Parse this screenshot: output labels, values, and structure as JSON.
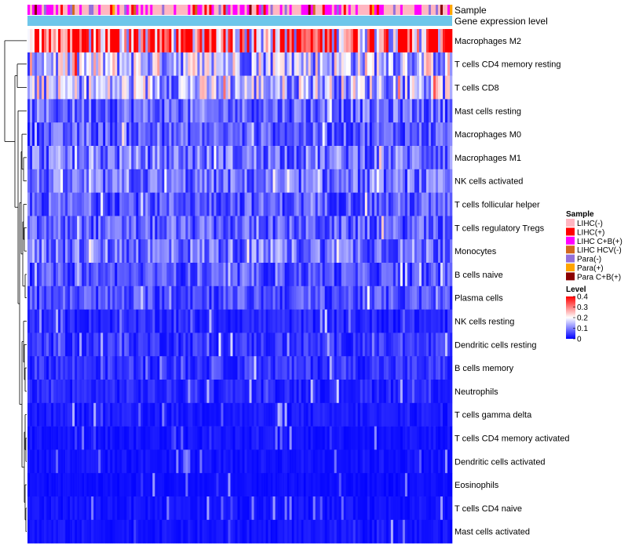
{
  "chart_data": {
    "type": "heatmap",
    "annotation_rows": [
      "Sample",
      "Gene expression level"
    ],
    "rows": [
      {
        "name": "Macrophages M2",
        "mean": 0.32
      },
      {
        "name": "T cells CD4 memory resting",
        "mean": 0.16
      },
      {
        "name": "T cells CD8",
        "mean": 0.15
      },
      {
        "name": "Mast cells resting",
        "mean": 0.08
      },
      {
        "name": "Macrophages M0",
        "mean": 0.07
      },
      {
        "name": "Macrophages M1",
        "mean": 0.09
      },
      {
        "name": "NK cells activated",
        "mean": 0.08
      },
      {
        "name": "T cells follicular helper",
        "mean": 0.07
      },
      {
        "name": "T cells regulatory  Tregs",
        "mean": 0.07
      },
      {
        "name": "Monocytes",
        "mean": 0.09
      },
      {
        "name": "B cells naive",
        "mean": 0.06
      },
      {
        "name": "Plasma cells",
        "mean": 0.06
      },
      {
        "name": "NK cells resting",
        "mean": 0.03
      },
      {
        "name": "Dendritic cells resting",
        "mean": 0.04
      },
      {
        "name": "B cells memory",
        "mean": 0.04
      },
      {
        "name": "Neutrophils",
        "mean": 0.03
      },
      {
        "name": "T cells gamma delta",
        "mean": 0.02
      },
      {
        "name": "T cells CD4 memory activated",
        "mean": 0.015
      },
      {
        "name": "Dendritic cells activated",
        "mean": 0.015
      },
      {
        "name": "Eosinophils",
        "mean": 0.01
      },
      {
        "name": "T cells CD4 naive",
        "mean": 0.015
      },
      {
        "name": "Mast cells activated",
        "mean": 0.015
      }
    ],
    "sample_legend": {
      "title": "Sample",
      "items": [
        {
          "label": "LIHC(-)",
          "color": "#ffb6c1"
        },
        {
          "label": "LIHC(+)",
          "color": "#ff0000"
        },
        {
          "label": "LIHC C+B(+)",
          "color": "#ff00ff"
        },
        {
          "label": "LIHC HCV(-)",
          "color": "#d2691e"
        },
        {
          "label": "Para(-)",
          "color": "#9370db"
        },
        {
          "label": "Para(+)",
          "color": "#ffa500"
        },
        {
          "label": "Para C+B(+)",
          "color": "#8b0000"
        }
      ]
    },
    "level_legend": {
      "title": "Level",
      "ticks": [
        "0.4",
        "0.3",
        "0.2",
        "0.1",
        "0"
      ],
      "range": [
        0,
        0.4
      ],
      "colors": [
        "#0000ff",
        "#ffffff",
        "#ff0000"
      ]
    },
    "expression_bar_color": "#6ec6ea",
    "dendrogram_side": "left"
  }
}
